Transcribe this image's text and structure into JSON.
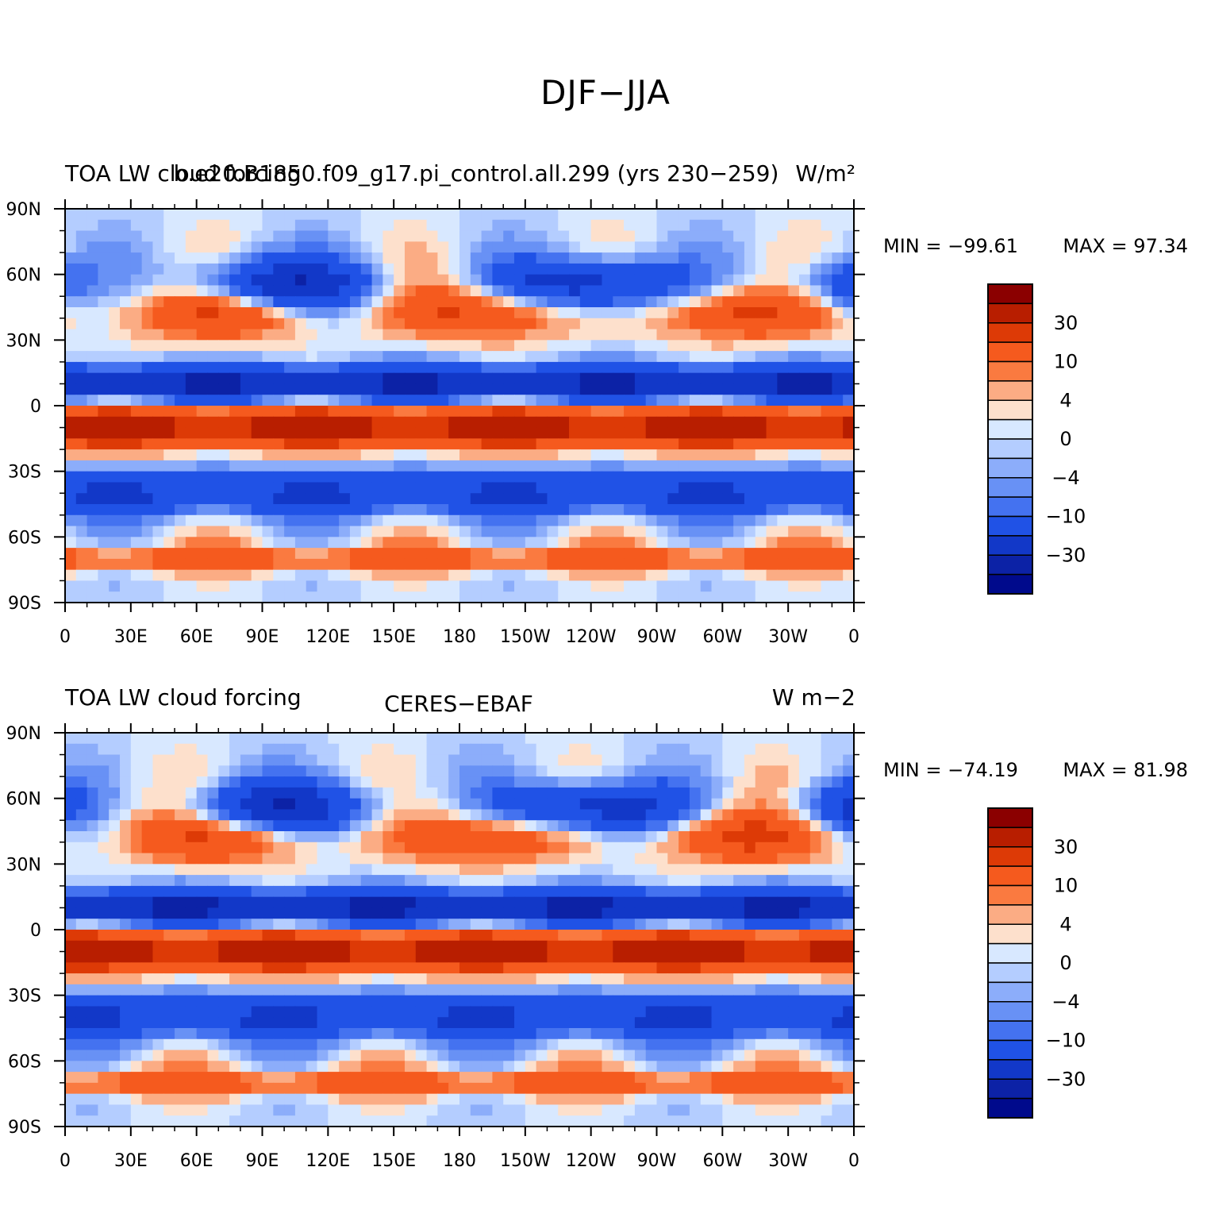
{
  "figure_title": "DJF−JJA",
  "panels": [
    {
      "left_title": "TOA LW cloud forcing",
      "center_title": "b.e20.B1850.f09_g17.pi_control.all.299 (yrs 230−259)",
      "right_title": "W/m²",
      "min_label": "MIN = −99.61",
      "max_label": "MAX =  97.34"
    },
    {
      "left_title": "TOA LW cloud forcing",
      "center_title": "CERES−EBAF",
      "right_title": "W m−2",
      "min_label": "MIN = −74.19",
      "max_label": "MAX =  81.98"
    }
  ],
  "chart_data": [
    {
      "type": "heatmap",
      "title": "TOA LW cloud forcing",
      "subtitle": "b.e20.B1850.f09_g17.pi_control.all.299 (yrs 230−259)",
      "units": "W/m²",
      "min": -99.61,
      "max": 97.34,
      "x_ticks": [
        "0",
        "30E",
        "60E",
        "90E",
        "120E",
        "150E",
        "180",
        "150W",
        "120W",
        "90W",
        "60W",
        "30W",
        "0"
      ],
      "y_ticks": [
        "90N",
        "60N",
        "30N",
        "0",
        "30S",
        "60S",
        "90S"
      ],
      "colorbar_levels": [
        "30",
        "10",
        "4",
        "0",
        "−4",
        "−10",
        "−30"
      ],
      "colorbar_colors": [
        "#8b0000",
        "#b81e00",
        "#dd3a06",
        "#f55a1e",
        "#fa7a40",
        "#fbac84",
        "#fde0cc",
        "#d8e8ff",
        "#b4cdff",
        "#8cadfa",
        "#6891f5",
        "#4472f0",
        "#2052e6",
        "#1238c8",
        "#0c22a6",
        "#000a8c"
      ]
    },
    {
      "type": "heatmap",
      "title": "TOA LW cloud forcing",
      "subtitle": "CERES−EBAF",
      "units": "W m−2",
      "min": -74.19,
      "max": 81.98,
      "x_ticks": [
        "0",
        "30E",
        "60E",
        "90E",
        "120E",
        "150E",
        "180",
        "150W",
        "120W",
        "90W",
        "60W",
        "30W",
        "0"
      ],
      "y_ticks": [
        "90N",
        "60N",
        "30N",
        "0",
        "30S",
        "60S",
        "90S"
      ],
      "colorbar_levels": [
        "30",
        "10",
        "4",
        "0",
        "−4",
        "−10",
        "−30"
      ],
      "colorbar_colors": [
        "#8b0000",
        "#b81e00",
        "#dd3a06",
        "#f55a1e",
        "#fa7a40",
        "#fbac84",
        "#fde0cc",
        "#d8e8ff",
        "#b4cdff",
        "#8cadfa",
        "#6891f5",
        "#4472f0",
        "#2052e6",
        "#1238c8",
        "#0c22a6",
        "#000a8c"
      ]
    }
  ]
}
